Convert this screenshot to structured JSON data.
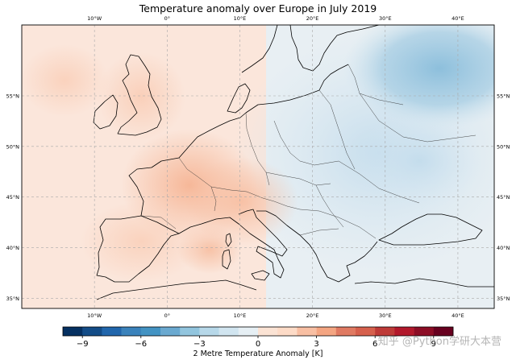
{
  "title": "Temperature anomaly over Europe in July 2019",
  "map": {
    "lon_range": [
      -20,
      45
    ],
    "lat_range": [
      34,
      62
    ],
    "lon_ticks": [
      {
        "value": -10,
        "label": "10°W"
      },
      {
        "value": 0,
        "label": "0°"
      },
      {
        "value": 10,
        "label": "10°E"
      },
      {
        "value": 20,
        "label": "20°E"
      },
      {
        "value": 30,
        "label": "30°E"
      },
      {
        "value": 40,
        "label": "40°E"
      }
    ],
    "lat_ticks": [
      {
        "value": 35,
        "label": "35°N"
      },
      {
        "value": 40,
        "label": "40°N"
      },
      {
        "value": 45,
        "label": "45°N"
      },
      {
        "value": 50,
        "label": "50°N"
      },
      {
        "value": 55,
        "label": "55°N"
      }
    ],
    "gridlines": true,
    "warm_color": "#f4a582",
    "cold_color": "#4393c3",
    "coast_color": "#000000",
    "grid_color": "#b0b0b0"
  },
  "colorbar": {
    "label": "2 Metre Temperature Anomaly [K]",
    "range": [
      -10,
      10
    ],
    "ticks": [
      {
        "value": -9,
        "label": "−9"
      },
      {
        "value": -6,
        "label": "−6"
      },
      {
        "value": -3,
        "label": "−3"
      },
      {
        "value": 0,
        "label": "0"
      },
      {
        "value": 3,
        "label": "3"
      },
      {
        "value": 6,
        "label": "6"
      },
      {
        "value": 9,
        "label": "9"
      }
    ],
    "colors": [
      "#053061",
      "#134c87",
      "#2166ac",
      "#3a82bb",
      "#4393c3",
      "#6aa9d0",
      "#92c5de",
      "#b7d8e9",
      "#d1e5f0",
      "#e6eff4",
      "#fbe3d4",
      "#fddbc7",
      "#f8bfa3",
      "#f4a582",
      "#e07a62",
      "#d6604d",
      "#be3a37",
      "#b2182b",
      "#8c0d25",
      "#67001f"
    ]
  },
  "watermark": "知乎 @Python学研大本营"
}
